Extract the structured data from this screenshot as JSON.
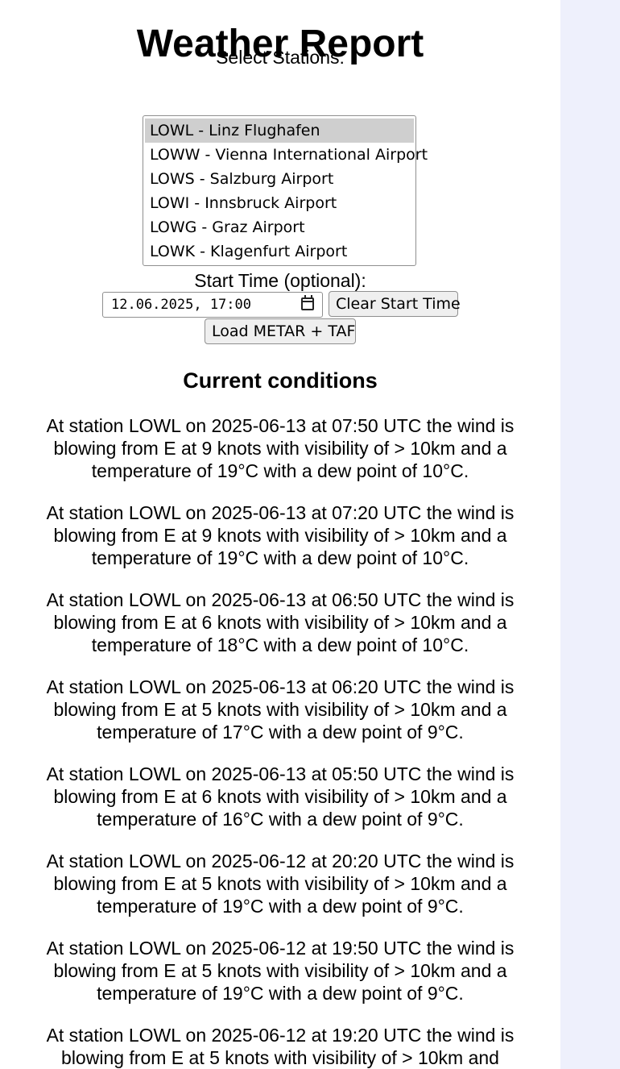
{
  "header": {
    "title": "Weather Report"
  },
  "stations": {
    "label": "Select Stations:",
    "options": [
      {
        "label": "LOWL - Linz Flughafen",
        "selected": true
      },
      {
        "label": "LOWW - Vienna International Airport",
        "selected": false
      },
      {
        "label": "LOWS - Salzburg Airport",
        "selected": false
      },
      {
        "label": "LOWI - Innsbruck Airport",
        "selected": false
      },
      {
        "label": "LOWG - Graz Airport",
        "selected": false
      },
      {
        "label": "LOWK - Klagenfurt Airport",
        "selected": false
      }
    ]
  },
  "start_time": {
    "label": "Start Time (optional):",
    "value": "12.06.2025, 17:00",
    "clear_label": "Clear Start Time"
  },
  "load_label": "Load METAR + TAF",
  "conditions": {
    "title": "Current conditions",
    "reports": [
      "At station LOWL on 2025-06-13 at 07:50 UTC the wind is blowing from E at 9 knots with visibility of > 10km and a temperature of 19°C with a dew point of 10°C.",
      "At station LOWL on 2025-06-13 at 07:20 UTC the wind is blowing from E at 9 knots with visibility of > 10km and a temperature of 19°C with a dew point of 10°C.",
      "At station LOWL on 2025-06-13 at 06:50 UTC the wind is blowing from E at 6 knots with visibility of > 10km and a temperature of 18°C with a dew point of 10°C.",
      "At station LOWL on 2025-06-13 at 06:20 UTC the wind is blowing from E at 5 knots with visibility of > 10km and a temperature of 17°C with a dew point of 9°C.",
      "At station LOWL on 2025-06-13 at 05:50 UTC the wind is blowing from E at 6 knots with visibility of > 10km and a temperature of 16°C with a dew point of 9°C.",
      "At station LOWL on 2025-06-12 at 20:20 UTC the wind is blowing from E at 5 knots with visibility of > 10km and a temperature of 19°C with a dew point of 9°C.",
      "At station LOWL on 2025-06-12 at 19:50 UTC the wind is blowing from E at 5 knots with visibility of > 10km and a temperature of 19°C with a dew point of 9°C.",
      "At station LOWL on 2025-06-12 at 19:20 UTC the wind is blowing from E at 5 knots with visibility of > 10km and"
    ]
  }
}
